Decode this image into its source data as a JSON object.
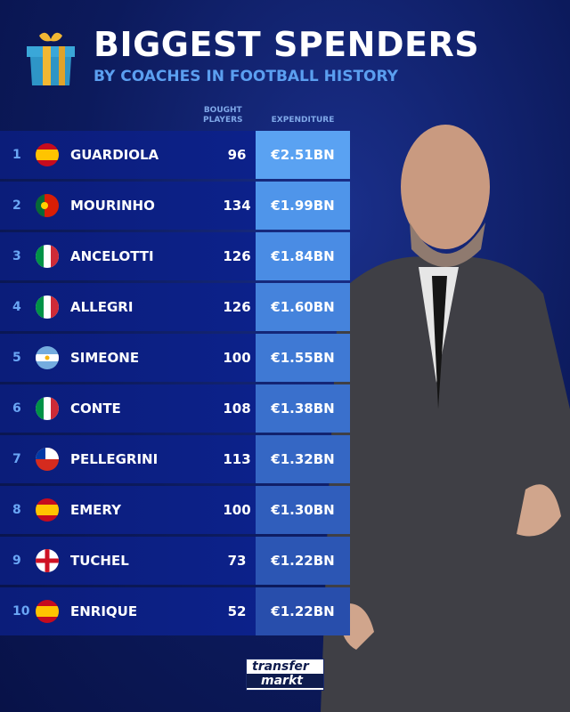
{
  "header": {
    "title": "BIGGEST SPENDERS",
    "subtitle": "BY COACHES IN FOOTBALL HISTORY",
    "icon": "gift-icon"
  },
  "columns": {
    "bought": [
      "BOUGHT",
      "PLAYERS"
    ],
    "expenditure": "EXPENDITURE"
  },
  "rows": [
    {
      "rank": "1",
      "flag": "spain",
      "name": "GUARDIOLA",
      "bought": "96",
      "expenditure": "€2.51BN",
      "color": "#5aa2f2"
    },
    {
      "rank": "2",
      "flag": "portugal",
      "name": "MOURINHO",
      "bought": "134",
      "expenditure": "€1.99BN",
      "color": "#4f95ea"
    },
    {
      "rank": "3",
      "flag": "italy",
      "name": "ANCELOTTI",
      "bought": "126",
      "expenditure": "€1.84BN",
      "color": "#4a8ce4"
    },
    {
      "rank": "4",
      "flag": "italy",
      "name": "ALLEGRI",
      "bought": "126",
      "expenditure": "€1.60BN",
      "color": "#4583dc"
    },
    {
      "rank": "5",
      "flag": "argentina",
      "name": "SIMEONE",
      "bought": "100",
      "expenditure": "€1.55BN",
      "color": "#3f79d4"
    },
    {
      "rank": "6",
      "flag": "italy",
      "name": "CONTE",
      "bought": "108",
      "expenditure": "€1.38BN",
      "color": "#3a70cc"
    },
    {
      "rank": "7",
      "flag": "chile",
      "name": "PELLEGRINI",
      "bought": "113",
      "expenditure": "€1.32BN",
      "color": "#3567c4"
    },
    {
      "rank": "8",
      "flag": "spain",
      "name": "EMERY",
      "bought": "100",
      "expenditure": "€1.30BN",
      "color": "#305ebc"
    },
    {
      "rank": "9",
      "flag": "england",
      "name": "TUCHEL",
      "bought": "73",
      "expenditure": "€1.22BN",
      "color": "#2c56b4"
    },
    {
      "rank": "10",
      "flag": "spain",
      "name": "ENRIQUE",
      "bought": "52",
      "expenditure": "€1.22BN",
      "color": "#284eac"
    }
  ],
  "logo": {
    "line1": "transfer",
    "line2": "markt"
  }
}
